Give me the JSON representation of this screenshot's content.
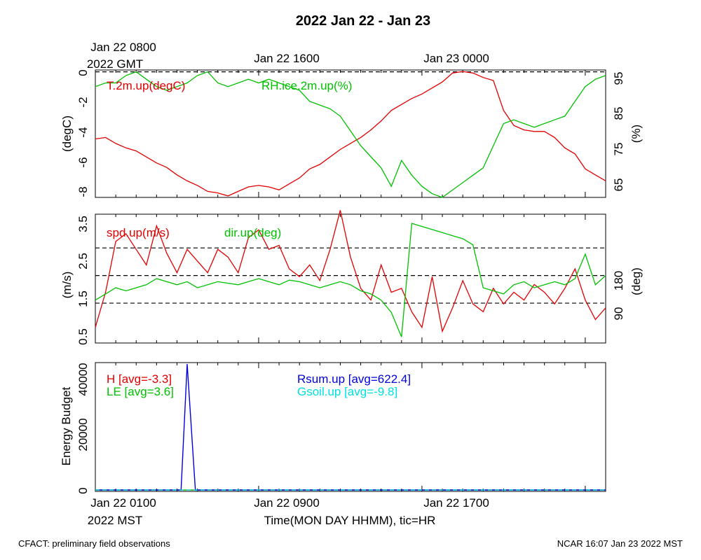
{
  "title": "2022 Jan 22 - Jan 23",
  "top_axis": {
    "labels": [
      "Jan 22 0800",
      "Jan 22 1600",
      "Jan 23 0000"
    ],
    "year_label": "2022 GMT"
  },
  "bottom_axis": {
    "labels": [
      "Jan 22 0100",
      "Jan 22 0900",
      "Jan 22 1700"
    ],
    "year_label": "2022 MST",
    "xlabel": "Time(MON DAY HHMM), tic=HR"
  },
  "footer": {
    "left": "CFACT: preliminary field observations",
    "right": "NCAR 16:07 Jan 23 2022 MST"
  },
  "colors": {
    "red": "#e00000",
    "green": "#00c000",
    "blue": "#0000dd",
    "cyan": "#00e0e0"
  },
  "chart_data": [
    {
      "type": "line",
      "panel": "temperature-humidity",
      "x_range_hours": [
        0,
        25
      ],
      "left_axis": {
        "label": "(degC)",
        "range": [
          -8.3,
          0.2
        ],
        "ticks": [
          "0",
          "-2",
          "-4",
          "-6",
          "-8"
        ]
      },
      "right_axis": {
        "label": "(%)",
        "range": [
          62,
          96.5
        ],
        "ticks": [
          "95",
          "85",
          "75",
          "65"
        ]
      },
      "reference_lines": [
        {
          "axis": "right",
          "value": 96
        }
      ],
      "series": [
        {
          "name": "T.2m.up(degC)",
          "color": "red",
          "axis": "left",
          "x": [
            0,
            0.5,
            1,
            1.5,
            2,
            2.5,
            3,
            3.5,
            4,
            4.5,
            5,
            5.5,
            6,
            6.5,
            7,
            7.5,
            8,
            8.5,
            9,
            9.5,
            10,
            10.5,
            11,
            11.5,
            12,
            12.5,
            13,
            13.5,
            14,
            14.5,
            15,
            15.5,
            16,
            16.5,
            17,
            17.5,
            18,
            18.5,
            19,
            19.5,
            20,
            20.5,
            21,
            21.5,
            22,
            22.5,
            23,
            23.5,
            24,
            24.5,
            25
          ],
          "y": [
            -4.4,
            -4.3,
            -4.7,
            -5.0,
            -5.2,
            -5.6,
            -6.0,
            -6.3,
            -6.8,
            -7.2,
            -7.5,
            -7.9,
            -8.0,
            -8.2,
            -7.9,
            -7.6,
            -7.5,
            -7.6,
            -7.8,
            -7.4,
            -7.0,
            -6.4,
            -6.1,
            -5.6,
            -5.1,
            -4.7,
            -4.3,
            -3.8,
            -3.2,
            -2.5,
            -2.1,
            -1.7,
            -1.4,
            -1.0,
            -0.6,
            0.0,
            0.1,
            0.0,
            -0.3,
            -0.5,
            -2.5,
            -3.5,
            -3.8,
            -3.9,
            -3.9,
            -4.3,
            -5.0,
            -5.4,
            -6.4,
            -6.8,
            -7.2
          ]
        },
        {
          "name": "RH.ice.2m.up(%)",
          "color": "green",
          "axis": "right",
          "x": [
            0,
            0.5,
            1,
            1.5,
            2,
            2.5,
            3,
            3.5,
            4,
            4.5,
            5,
            5.5,
            6,
            6.5,
            7,
            7.5,
            8,
            8.5,
            9,
            9.5,
            10,
            10.5,
            11,
            11.5,
            12,
            12.5,
            13,
            13.5,
            14,
            14.5,
            15,
            15.5,
            16,
            16.5,
            17,
            17.5,
            18,
            18.5,
            19,
            19.5,
            20,
            20.5,
            21,
            21.5,
            22,
            22.5,
            23,
            23.5,
            24,
            24.5,
            25
          ],
          "y": [
            92,
            93,
            93,
            95,
            96,
            94,
            92,
            91,
            92,
            93,
            95,
            96,
            93,
            92,
            93,
            94,
            93,
            94,
            93,
            92,
            91,
            88,
            87,
            86,
            84,
            80,
            76,
            73,
            70,
            65,
            72,
            68,
            65,
            63,
            62,
            64,
            66,
            68,
            70,
            76,
            82,
            83,
            82,
            81,
            82,
            83,
            84,
            88,
            92,
            94,
            95
          ]
        }
      ]
    },
    {
      "type": "line",
      "panel": "wind",
      "x_range_hours": [
        0,
        25
      ],
      "left_axis": {
        "label": "(m/s)",
        "range": [
          0.2,
          3.5
        ],
        "ticks": [
          "3.5",
          "2.5",
          "1.5",
          "0.5"
        ]
      },
      "right_axis": {
        "label": "(deg)",
        "range": [
          -40,
          380
        ],
        "ticks": [
          "180",
          "90"
        ]
      },
      "reference_lines": [
        {
          "axis": "right",
          "value": 270
        },
        {
          "axis": "right",
          "value": 180
        },
        {
          "axis": "right",
          "value": 90
        }
      ],
      "series": [
        {
          "name": "spd.up(m/s)",
          "color": "red",
          "axis": "left",
          "x": [
            0,
            0.5,
            1,
            1.5,
            2,
            2.5,
            3,
            3.5,
            4,
            4.5,
            5,
            5.5,
            6,
            6.5,
            7,
            7.5,
            8,
            8.5,
            9,
            9.5,
            10,
            10.5,
            11,
            11.5,
            12,
            12.5,
            13,
            13.5,
            14,
            14.5,
            15,
            15.5,
            16,
            16.5,
            17,
            17.5,
            18,
            18.5,
            19,
            19.5,
            20,
            20.5,
            21,
            21.5,
            22,
            22.5,
            23,
            23.5,
            24,
            24.5,
            25
          ],
          "y": [
            0.6,
            1.5,
            2.8,
            3.0,
            2.6,
            2.2,
            3.2,
            2.5,
            2.0,
            2.6,
            2.3,
            2.0,
            2.6,
            2.4,
            2.0,
            2.9,
            3.1,
            2.6,
            2.7,
            2.1,
            1.9,
            2.2,
            1.8,
            2.6,
            3.6,
            2.4,
            1.6,
            1.3,
            2.2,
            1.5,
            1.6,
            1.0,
            0.6,
            1.9,
            0.5,
            1.1,
            1.8,
            1.2,
            1.0,
            1.6,
            1.2,
            1.5,
            1.3,
            1.7,
            1.5,
            1.2,
            1.6,
            2.1,
            1.3,
            0.8,
            1.1
          ]
        },
        {
          "name": "dir.up(deg)",
          "color": "green",
          "axis": "right",
          "x": [
            0,
            0.5,
            1,
            1.5,
            2,
            2.5,
            3,
            3.5,
            4,
            4.5,
            5,
            5.5,
            6,
            6.5,
            7,
            7.5,
            8,
            8.5,
            9,
            9.5,
            10,
            10.5,
            11,
            11.5,
            12,
            12.5,
            13,
            13.5,
            14,
            14.5,
            15,
            15.5,
            16,
            16.5,
            17,
            17.5,
            18,
            18.5,
            19,
            19.5,
            20,
            20.5,
            21,
            21.5,
            22,
            22.5,
            23,
            23.5,
            24,
            24.5,
            25
          ],
          "y": [
            100,
            120,
            140,
            130,
            140,
            150,
            170,
            160,
            150,
            160,
            140,
            150,
            160,
            155,
            150,
            160,
            170,
            160,
            150,
            165,
            160,
            150,
            140,
            150,
            160,
            150,
            130,
            120,
            100,
            60,
            -20,
            350,
            340,
            330,
            320,
            310,
            300,
            280,
            140,
            130,
            120,
            150,
            160,
            140,
            150,
            160,
            150,
            170,
            250,
            150,
            180
          ]
        }
      ]
    },
    {
      "type": "line",
      "panel": "energy-budget",
      "x_range_hours": [
        0,
        25
      ],
      "left_axis": {
        "label": "Energy Budget",
        "range": [
          -500,
          46500
        ],
        "ticks": [
          "40000",
          "20000",
          "0"
        ]
      },
      "series": [
        {
          "name": "H [avg=-3.3]",
          "color": "red",
          "x": [
            0,
            25
          ],
          "y": [
            0,
            0
          ]
        },
        {
          "name": "LE [avg=3.6]",
          "color": "green",
          "x": [
            0,
            25
          ],
          "y": [
            0,
            0
          ]
        },
        {
          "name": "Rsum.up [avg=622.4]",
          "color": "blue",
          "x": [
            0,
            4.2,
            4.5,
            4.9,
            25
          ],
          "y": [
            0,
            0,
            46000,
            0,
            0
          ]
        },
        {
          "name": "Gsoil.up [avg=-9.8]",
          "color": "cyan",
          "x": [
            0,
            25
          ],
          "y": [
            0,
            0
          ]
        }
      ]
    }
  ]
}
